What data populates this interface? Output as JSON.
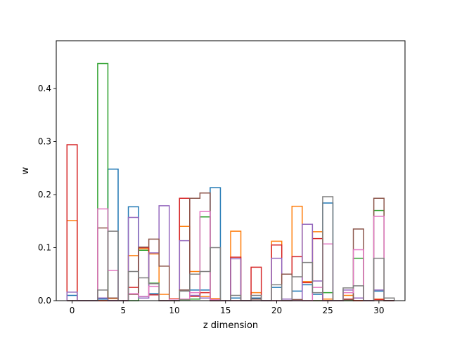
{
  "chart_data": {
    "type": "bar",
    "style": "step-histogram",
    "xlabel": "z dimension",
    "ylabel": "w",
    "xlim": [
      -1.55,
      32.55
    ],
    "ylim": [
      0,
      0.49
    ],
    "xticks": [
      0,
      5,
      10,
      15,
      20,
      25,
      30
    ],
    "yticks": [
      0.0,
      0.1,
      0.2,
      0.3,
      0.4
    ],
    "grid": false,
    "legend": "none",
    "x": [
      0,
      1,
      2,
      3,
      4,
      5,
      6,
      7,
      8,
      9,
      10,
      11,
      12,
      13,
      14,
      15,
      16,
      17,
      18,
      19,
      20,
      21,
      22,
      23,
      24,
      25,
      26,
      27,
      28,
      29,
      30,
      31
    ],
    "series": [
      {
        "color": "#1f77b4",
        "values": [
          0.01,
          0,
          0,
          0.003,
          0.248,
          0,
          0.177,
          0.008,
          0.013,
          0,
          0,
          0.02,
          0.02,
          0.02,
          0.213,
          0,
          0.005,
          0,
          0.005,
          0,
          0.025,
          0,
          0.018,
          0.03,
          0.012,
          0.184,
          0,
          0.003,
          0,
          0,
          0.018,
          0
        ]
      },
      {
        "color": "#ff7f0e",
        "values": [
          0.151,
          0,
          0,
          0,
          0.004,
          0,
          0.085,
          0.098,
          0.088,
          0.012,
          0.004,
          0.14,
          0.055,
          0.008,
          0.004,
          0,
          0.131,
          0,
          0.015,
          0,
          0.112,
          0,
          0.178,
          0.036,
          0.13,
          0.003,
          0,
          0.01,
          0,
          0,
          0.003,
          0
        ]
      },
      {
        "color": "#2ca02c",
        "values": [
          0,
          0,
          0,
          0.447,
          0,
          0,
          0,
          0.095,
          0.033,
          0,
          0,
          0.002,
          0.003,
          0.158,
          0,
          0,
          0,
          0,
          0,
          0,
          0,
          0,
          0,
          0,
          0,
          0.015,
          0,
          0,
          0.08,
          0,
          0.17,
          0
        ]
      },
      {
        "color": "#d62728",
        "values": [
          0.294,
          0,
          0,
          0,
          0,
          0,
          0.025,
          0.1,
          0.011,
          0,
          0,
          0.193,
          0.008,
          0.015,
          0,
          0,
          0.082,
          0,
          0.063,
          0,
          0.105,
          0,
          0.083,
          0.034,
          0.117,
          0,
          0,
          0.003,
          0,
          0,
          0.002,
          0
        ]
      },
      {
        "color": "#9467bd",
        "values": [
          0.016,
          0,
          0,
          0.005,
          0,
          0,
          0.157,
          0.005,
          0.09,
          0.179,
          0,
          0.113,
          0.01,
          0.005,
          0,
          0,
          0.079,
          0,
          0.003,
          0,
          0.08,
          0.003,
          0.002,
          0.144,
          0.037,
          0,
          0,
          0.02,
          0.005,
          0,
          0.02,
          0
        ]
      },
      {
        "color": "#8c564b",
        "values": [
          0,
          0,
          0,
          0.137,
          0.005,
          0,
          0.012,
          0.101,
          0.116,
          0.065,
          0,
          0.02,
          0.193,
          0.203,
          0,
          0,
          0,
          0,
          0.003,
          0,
          0,
          0.05,
          0.002,
          0,
          0,
          0,
          0,
          0.002,
          0.135,
          0,
          0.193,
          0
        ]
      },
      {
        "color": "#e377c2",
        "values": [
          0,
          0,
          0,
          0.173,
          0.057,
          0,
          0.013,
          0.008,
          0.027,
          0,
          0.003,
          0.003,
          0.015,
          0.168,
          0.002,
          0,
          0,
          0,
          0,
          0,
          0,
          0,
          0,
          0,
          0.025,
          0.107,
          0,
          0.015,
          0.096,
          0,
          0.159,
          0.005
        ]
      },
      {
        "color": "#7f7f7f",
        "values": [
          0,
          0,
          0,
          0.02,
          0.131,
          0,
          0.055,
          0.043,
          0.032,
          0,
          0,
          0.018,
          0.05,
          0.055,
          0.1,
          0,
          0.01,
          0,
          0.01,
          0,
          0.03,
          0,
          0.045,
          0.072,
          0.015,
          0.196,
          0,
          0.024,
          0.028,
          0,
          0.08,
          0.005
        ]
      }
    ]
  }
}
